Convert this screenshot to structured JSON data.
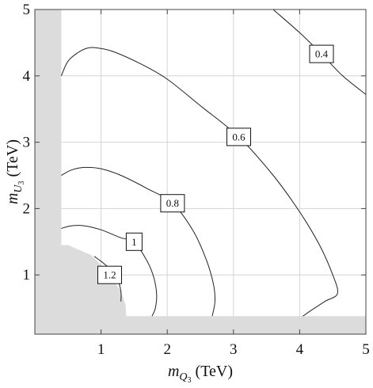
{
  "chart_data": {
    "type": "contour",
    "xlabel": {
      "base": "m",
      "sub": "Q",
      "subsub": "3",
      "unit": "(TeV)"
    },
    "ylabel": {
      "base": "m",
      "sub": "U",
      "subsub": "3",
      "unit": "(TeV)"
    },
    "xlim": [
      0,
      5
    ],
    "ylim": [
      0,
      5
    ],
    "x_ticks": [
      {
        "value": 1,
        "label": "1"
      },
      {
        "value": 2,
        "label": "2"
      },
      {
        "value": 3,
        "label": "3"
      },
      {
        "value": 4,
        "label": "4"
      },
      {
        "value": 5,
        "label": "5"
      }
    ],
    "y_ticks": [
      {
        "value": 1,
        "label": "1"
      },
      {
        "value": 2,
        "label": "2"
      },
      {
        "value": 3,
        "label": "3"
      },
      {
        "value": 4,
        "label": "4"
      },
      {
        "value": 5,
        "label": "5"
      }
    ],
    "grid": true,
    "colors": {
      "excluded_region": "#dcdcdc",
      "contour_line": "#222222",
      "grid_line": "#d4d4d4",
      "axis": "#444444"
    },
    "excluded_region": [
      [
        0,
        0
      ],
      [
        0,
        5
      ],
      [
        0.4,
        5
      ],
      [
        0.4,
        1.45
      ],
      [
        0.5,
        1.45
      ],
      [
        0.85,
        1.3
      ],
      [
        1.1,
        1.05
      ],
      [
        1.3,
        0.75
      ],
      [
        1.37,
        0.55
      ],
      [
        1.38,
        0.38
      ],
      [
        5,
        0.38
      ],
      [
        5,
        0
      ]
    ],
    "contours": [
      {
        "level": 0.4,
        "label": "0.4",
        "label_at": [
          4.33,
          4.33
        ],
        "points": [
          [
            3.6,
            5.0
          ],
          [
            4.0,
            4.65
          ],
          [
            4.33,
            4.33
          ],
          [
            4.65,
            4.0
          ],
          [
            5.0,
            3.72
          ]
        ]
      },
      {
        "level": 0.6,
        "label": "0.6",
        "label_at": [
          3.08,
          3.08
        ],
        "points": [
          [
            0.4,
            4.0
          ],
          [
            0.5,
            4.22
          ],
          [
            0.65,
            4.35
          ],
          [
            0.8,
            4.42
          ],
          [
            0.95,
            4.42
          ],
          [
            1.2,
            4.36
          ],
          [
            1.6,
            4.18
          ],
          [
            2.0,
            3.95
          ],
          [
            2.5,
            3.55
          ],
          [
            3.08,
            3.08
          ],
          [
            3.6,
            2.5
          ],
          [
            4.0,
            1.95
          ],
          [
            4.3,
            1.45
          ],
          [
            4.5,
            1.0
          ],
          [
            4.57,
            0.72
          ],
          [
            4.38,
            0.6
          ],
          [
            4.15,
            0.45
          ],
          [
            4.05,
            0.38
          ]
        ]
      },
      {
        "level": 0.8,
        "label": "0.8",
        "label_at": [
          2.08,
          2.08
        ],
        "points": [
          [
            0.4,
            2.5
          ],
          [
            0.55,
            2.58
          ],
          [
            0.75,
            2.62
          ],
          [
            1.0,
            2.6
          ],
          [
            1.3,
            2.5
          ],
          [
            1.7,
            2.3
          ],
          [
            2.08,
            2.08
          ],
          [
            2.4,
            1.65
          ],
          [
            2.6,
            1.2
          ],
          [
            2.7,
            0.85
          ],
          [
            2.72,
            0.6
          ],
          [
            2.68,
            0.38
          ]
        ]
      },
      {
        "level": 1.0,
        "label": "1",
        "label_at": [
          1.5,
          1.5
        ],
        "points": [
          [
            0.4,
            1.7
          ],
          [
            0.55,
            1.74
          ],
          [
            0.75,
            1.74
          ],
          [
            1.0,
            1.68
          ],
          [
            1.3,
            1.56
          ],
          [
            1.5,
            1.5
          ],
          [
            1.7,
            1.2
          ],
          [
            1.8,
            0.95
          ],
          [
            1.84,
            0.7
          ],
          [
            1.82,
            0.5
          ],
          [
            1.77,
            0.38
          ]
        ]
      },
      {
        "level": 1.2,
        "label": "1.2",
        "label_at": [
          1.13,
          1.0
        ],
        "points": [
          [
            0.9,
            1.28
          ],
          [
            1.1,
            1.12
          ],
          [
            1.25,
            0.92
          ],
          [
            1.3,
            0.75
          ],
          [
            1.3,
            0.6
          ]
        ]
      }
    ]
  }
}
